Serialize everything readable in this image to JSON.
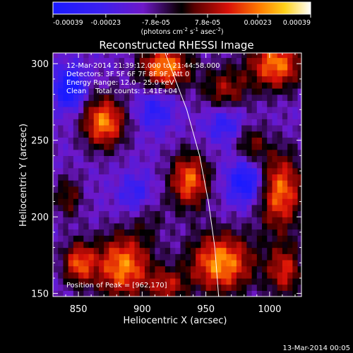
{
  "chart_data": {
    "type": "heatmap",
    "title": "Reconstructed RHESSI Image",
    "xlabel": "Heliocentric X (arcsec)",
    "ylabel": "Heliocentric Y (arcsec)",
    "xlim": [
      830,
      1025
    ],
    "ylim": [
      148,
      307
    ],
    "xticks": [
      850,
      900,
      950,
      1000
    ],
    "yticks": [
      150,
      200,
      250,
      300
    ],
    "xtick_labels": [
      "850",
      "900",
      "950",
      "1000"
    ],
    "ytick_labels": [
      "150",
      "200",
      "250",
      "300"
    ],
    "colorbar": {
      "range": [
        -0.00039,
        0.00039
      ],
      "ticks": [
        -0.00039,
        -0.00023,
        -7.8e-05,
        7.8e-05,
        0.00023,
        0.00039
      ],
      "tick_labels": [
        "-0.00039",
        "-0.00023",
        "-7.8e-05",
        "7.8e-05",
        "0.00023",
        "0.00039"
      ],
      "units_prefix": "(photons cm",
      "units_exp1": "-2",
      "units_mid": " s",
      "units_exp2": "-1",
      "units_mid2": " asec",
      "units_exp3": "-2",
      "units_suffix": ")"
    },
    "annotations": {
      "time_range": "12-Mar-2014 21:39:12.000 to 21:44:58.000",
      "detectors": "Detectors: 3F 5F 6F 7F 8F 9F, Att 0",
      "energy": "Energy Range: 12.0 - 25.0 keV",
      "clean": "Clean    Total counts: 1.41E+04",
      "peak": "Position of Peak = [962,170]"
    },
    "limb_curve": [
      [
        918,
        307
      ],
      [
        935,
        270
      ],
      [
        945,
        240
      ],
      [
        952,
        210
      ],
      [
        957,
        180
      ],
      [
        960,
        148
      ]
    ],
    "sources": [
      {
        "x": 918,
        "y": 298,
        "amp": 0.00038,
        "sx": 14,
        "sy": 10
      },
      {
        "x": 1005,
        "y": 300,
        "amp": 0.00036,
        "sx": 15,
        "sy": 12
      },
      {
        "x": 870,
        "y": 262,
        "amp": 0.00037,
        "sx": 12,
        "sy": 12
      },
      {
        "x": 965,
        "y": 282,
        "amp": 0.00022,
        "sx": 13,
        "sy": 12
      },
      {
        "x": 937,
        "y": 224,
        "amp": 0.00034,
        "sx": 11,
        "sy": 13
      },
      {
        "x": 1008,
        "y": 217,
        "amp": 0.00035,
        "sx": 13,
        "sy": 18
      },
      {
        "x": 962,
        "y": 170,
        "amp": 0.00039,
        "sx": 18,
        "sy": 14
      },
      {
        "x": 885,
        "y": 168,
        "amp": 0.00037,
        "sx": 16,
        "sy": 15
      },
      {
        "x": 920,
        "y": 155,
        "amp": 0.00022,
        "sx": 10,
        "sy": 8
      },
      {
        "x": 842,
        "y": 213,
        "amp": 0.00018,
        "sx": 8,
        "sy": 10
      },
      {
        "x": 1012,
        "y": 165,
        "amp": 0.00026,
        "sx": 10,
        "sy": 12
      },
      {
        "x": 850,
        "y": 170,
        "amp": 0.0003,
        "sx": 9,
        "sy": 10
      },
      {
        "x": 985,
        "y": 248,
        "amp": 0.00018,
        "sx": 9,
        "sy": 9
      },
      {
        "x": 905,
        "y": 200,
        "amp": 0.0001,
        "sx": 10,
        "sy": 10
      }
    ],
    "negatives": [
      {
        "x": 843,
        "y": 284,
        "amp": -0.00034,
        "sx": 8,
        "sy": 9
      },
      {
        "x": 982,
        "y": 223,
        "amp": -0.0003,
        "sx": 10,
        "sy": 10
      },
      {
        "x": 965,
        "y": 262,
        "amp": -0.0002,
        "sx": 11,
        "sy": 9
      },
      {
        "x": 910,
        "y": 270,
        "amp": -0.00018,
        "sx": 10,
        "sy": 9
      },
      {
        "x": 895,
        "y": 215,
        "amp": -0.00016,
        "sx": 9,
        "sy": 9
      }
    ],
    "background": -0.00013
  },
  "footer": {
    "date": "13-Mar-2014 00:05"
  }
}
